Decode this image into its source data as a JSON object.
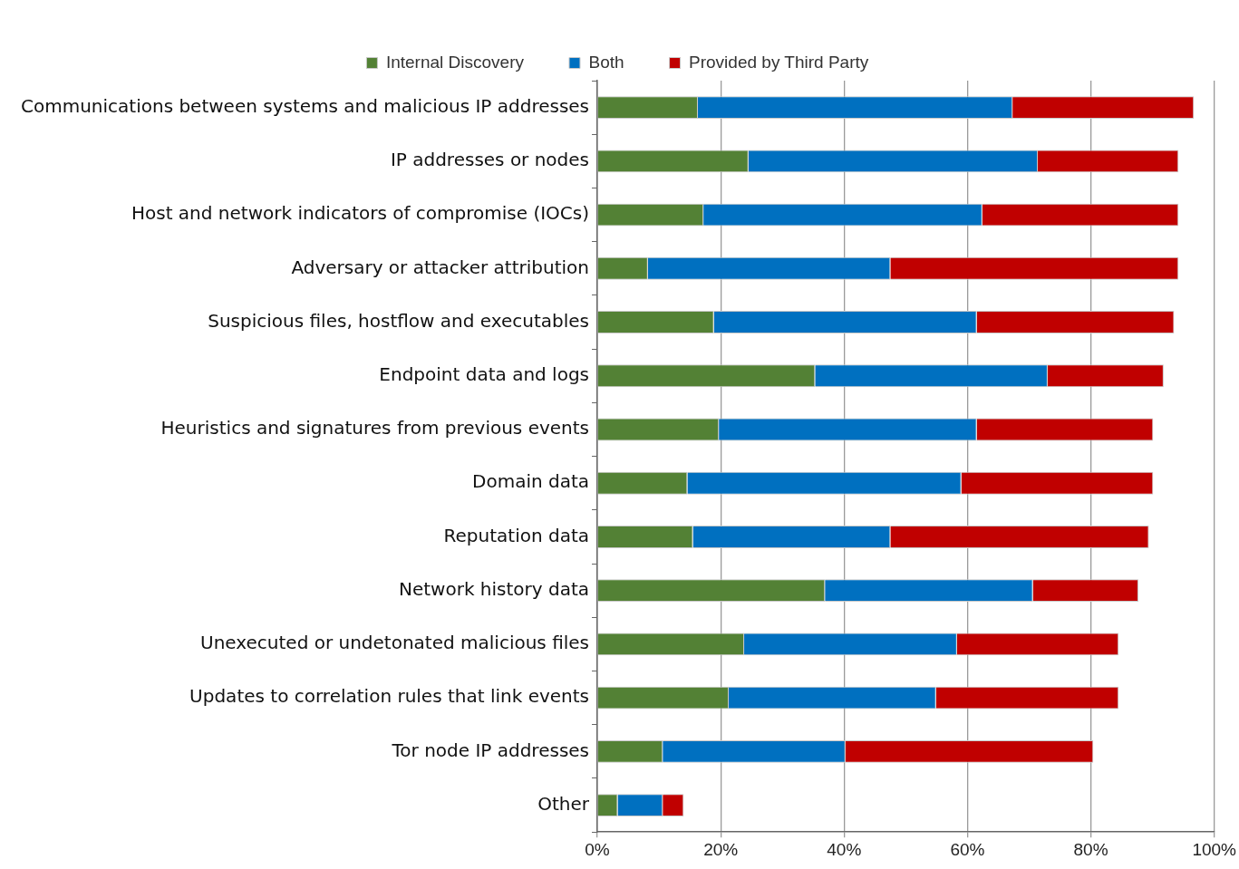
{
  "chart_data": {
    "type": "bar",
    "orientation": "horizontal",
    "stacked": true,
    "legend": "top",
    "grid": "x",
    "categories": [
      "Communications between systems and malicious IP addresses",
      "IP addresses or nodes",
      "Host and network indicators of compromise (IOCs)",
      "Adversary or attacker attribution",
      "Suspicious files, hostflow and executables",
      "Endpoint data and logs",
      "Heuristics and signatures from previous events",
      "Domain data",
      "Reputation data",
      "Network history data",
      "Unexecuted or undetonated malicious files",
      "Updates to correlation rules that link events",
      "Tor node IP addresses",
      "Other"
    ],
    "series": [
      {
        "name": "Internal Discovery",
        "color": "#538135",
        "values": [
          16.3,
          24.5,
          17.2,
          8.2,
          18.9,
          35.3,
          19.7,
          14.6,
          15.5,
          36.9,
          23.8,
          21.3,
          10.6,
          3.3
        ]
      },
      {
        "name": "Both",
        "color": "#0070c0",
        "values": [
          51.0,
          46.9,
          45.2,
          39.3,
          42.6,
          37.7,
          41.8,
          44.4,
          32.0,
          33.7,
          34.5,
          33.6,
          29.6,
          7.3
        ]
      },
      {
        "name": "Provided by Third Party",
        "color": "#c00000",
        "values": [
          29.4,
          22.8,
          31.8,
          46.7,
          32.0,
          18.8,
          28.6,
          31.1,
          41.9,
          17.1,
          26.2,
          29.6,
          40.2,
          3.4
        ]
      }
    ],
    "xlim": [
      0,
      100
    ],
    "xticks": [
      {
        "value": 0,
        "label": "0%"
      },
      {
        "value": 20,
        "label": "20%"
      },
      {
        "value": 40,
        "label": "40%"
      },
      {
        "value": 60,
        "label": "60%"
      },
      {
        "value": 80,
        "label": "80%"
      },
      {
        "value": 100,
        "label": "100%"
      }
    ]
  }
}
